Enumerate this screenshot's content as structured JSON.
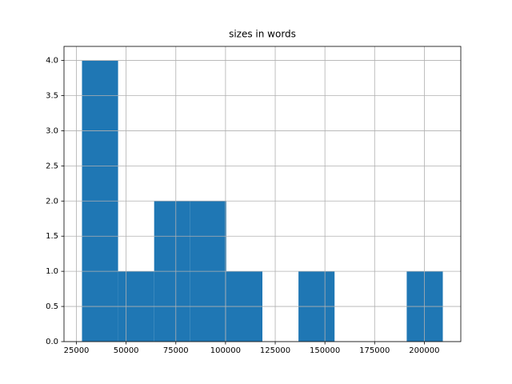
{
  "chart_data": {
    "type": "histogram",
    "title": "sizes in words",
    "bins": [
      27800,
      45950,
      64100,
      82250,
      100400,
      118550,
      136700,
      154850,
      173000,
      191150,
      209300
    ],
    "counts": [
      4,
      1,
      2,
      2,
      1,
      0,
      1,
      0,
      0,
      1
    ],
    "color": "#1f77b4",
    "xlim": [
      18750,
      218350
    ],
    "xticks": [
      25000,
      50000,
      75000,
      100000,
      125000,
      150000,
      175000,
      200000
    ],
    "ylim": [
      0,
      4.2
    ],
    "yticks": [
      {
        "value": 0,
        "label": "0.0"
      },
      {
        "value": 0.5,
        "label": "0.5"
      },
      {
        "value": 1,
        "label": "1.0"
      },
      {
        "value": 1.5,
        "label": "1.5"
      },
      {
        "value": 2,
        "label": "2.0"
      },
      {
        "value": 2.5,
        "label": "2.5"
      },
      {
        "value": 3,
        "label": "3.0"
      },
      {
        "value": 3.5,
        "label": "3.5"
      },
      {
        "value": 4,
        "label": "4.0"
      }
    ],
    "grid": true
  }
}
